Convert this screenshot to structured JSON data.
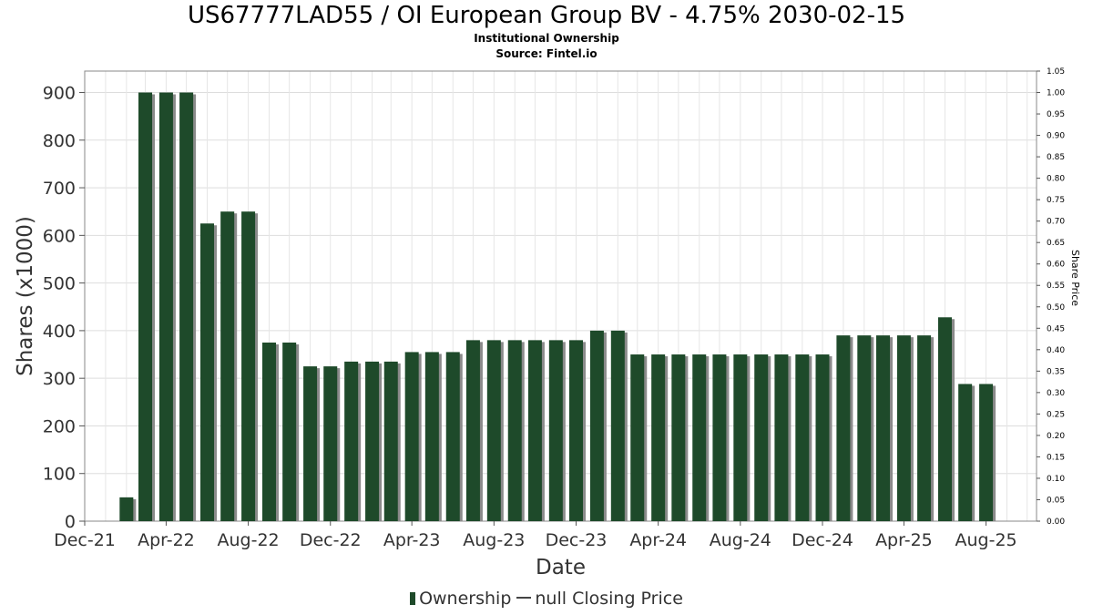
{
  "title": "US67777LAD55 / OI European Group BV - 4.75% 2030-02-15",
  "subtitle": "Institutional Ownership",
  "source": "Source: Fintel.io",
  "legend": {
    "ownership": "Ownership",
    "price": "null Closing Price"
  },
  "colors": {
    "bar": "#1e4a2a",
    "bar_shadow": "#8a8a8a",
    "grid": "#dddddd"
  },
  "chart_data": {
    "type": "bar",
    "xlabel": "Date",
    "ylabel": "Shares (x1000)",
    "y2label": "Share Price",
    "ylim": [
      0,
      945
    ],
    "y2lim": [
      0,
      1.05
    ],
    "xlim": [
      "2021-12-01",
      "2025-10-15"
    ],
    "yticks": [
      0,
      100,
      200,
      300,
      400,
      500,
      600,
      700,
      800,
      900
    ],
    "y2ticks": [
      "0.00",
      "0.05",
      "0.10",
      "0.15",
      "0.20",
      "0.25",
      "0.30",
      "0.35",
      "0.40",
      "0.45",
      "0.50",
      "0.55",
      "0.60",
      "0.65",
      "0.70",
      "0.75",
      "0.80",
      "0.85",
      "0.90",
      "0.95",
      "1.00",
      "1.05"
    ],
    "xticks": [
      {
        "label": "Dec-21",
        "date": "2021-12-01"
      },
      {
        "label": "Apr-22",
        "date": "2022-04-01"
      },
      {
        "label": "Aug-22",
        "date": "2022-08-01"
      },
      {
        "label": "Dec-22",
        "date": "2022-12-01"
      },
      {
        "label": "Apr-23",
        "date": "2023-04-01"
      },
      {
        "label": "Aug-23",
        "date": "2023-08-01"
      },
      {
        "label": "Dec-23",
        "date": "2023-12-01"
      },
      {
        "label": "Apr-24",
        "date": "2024-04-01"
      },
      {
        "label": "Aug-24",
        "date": "2024-08-01"
      },
      {
        "label": "Dec-24",
        "date": "2024-12-01"
      },
      {
        "label": "Apr-25",
        "date": "2025-04-01"
      },
      {
        "label": "Aug-25",
        "date": "2025-08-01"
      }
    ],
    "grid": true,
    "legend_position": "bottom",
    "series": [
      {
        "name": "Ownership",
        "points": [
          {
            "date": "2022-02-01",
            "value": 50
          },
          {
            "date": "2022-03-01",
            "value": 900
          },
          {
            "date": "2022-04-01",
            "value": 900
          },
          {
            "date": "2022-05-01",
            "value": 900
          },
          {
            "date": "2022-06-01",
            "value": 625
          },
          {
            "date": "2022-07-01",
            "value": 650
          },
          {
            "date": "2022-08-01",
            "value": 650
          },
          {
            "date": "2022-09-01",
            "value": 375
          },
          {
            "date": "2022-10-01",
            "value": 375
          },
          {
            "date": "2022-11-01",
            "value": 325
          },
          {
            "date": "2022-12-01",
            "value": 325
          },
          {
            "date": "2023-01-01",
            "value": 335
          },
          {
            "date": "2023-02-01",
            "value": 335
          },
          {
            "date": "2023-03-01",
            "value": 335
          },
          {
            "date": "2023-04-01",
            "value": 355
          },
          {
            "date": "2023-05-01",
            "value": 355
          },
          {
            "date": "2023-06-01",
            "value": 355
          },
          {
            "date": "2023-07-01",
            "value": 380
          },
          {
            "date": "2023-08-01",
            "value": 380
          },
          {
            "date": "2023-09-01",
            "value": 380
          },
          {
            "date": "2023-10-01",
            "value": 380
          },
          {
            "date": "2023-11-01",
            "value": 380
          },
          {
            "date": "2023-12-01",
            "value": 380
          },
          {
            "date": "2024-01-01",
            "value": 400
          },
          {
            "date": "2024-02-01",
            "value": 400
          },
          {
            "date": "2024-03-01",
            "value": 350
          },
          {
            "date": "2024-04-01",
            "value": 350
          },
          {
            "date": "2024-05-01",
            "value": 350
          },
          {
            "date": "2024-06-01",
            "value": 350
          },
          {
            "date": "2024-07-01",
            "value": 350
          },
          {
            "date": "2024-08-01",
            "value": 350
          },
          {
            "date": "2024-09-01",
            "value": 350
          },
          {
            "date": "2024-10-01",
            "value": 350
          },
          {
            "date": "2024-11-01",
            "value": 350
          },
          {
            "date": "2024-12-01",
            "value": 350
          },
          {
            "date": "2025-01-01",
            "value": 390
          },
          {
            "date": "2025-02-01",
            "value": 390
          },
          {
            "date": "2025-03-01",
            "value": 390
          },
          {
            "date": "2025-04-01",
            "value": 390
          },
          {
            "date": "2025-05-01",
            "value": 390
          },
          {
            "date": "2025-06-01",
            "value": 428
          },
          {
            "date": "2025-07-01",
            "value": 288
          },
          {
            "date": "2025-08-01",
            "value": 288
          }
        ]
      }
    ]
  }
}
